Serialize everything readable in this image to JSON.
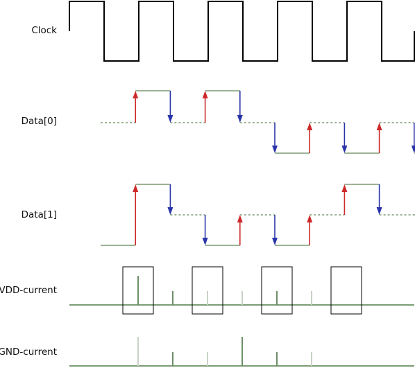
{
  "labels": {
    "clock": "Clock",
    "data0": "Data[0]",
    "data1": "Data[1]",
    "vdd": "VDD-current",
    "gnd": "GND-current"
  },
  "colors": {
    "clock": "#000000",
    "signal": "#7a9a72",
    "rise_arrow": "#cc2a2a",
    "fall_arrow": "#2a35a8",
    "current_baseline": "#4f7a46",
    "spike_strong": "#6d8f66",
    "spike_faint": "#c9d2c6",
    "box": "#000000"
  },
  "signals": {
    "clock_periods": 5,
    "data0": [
      "x",
      1,
      "x",
      1,
      "x",
      0,
      "x",
      0,
      "x",
      0
    ],
    "data1": [
      0,
      1,
      "x",
      0,
      "x",
      0,
      "x",
      1,
      "x",
      "x"
    ]
  },
  "currents": {
    "vdd_spikes": [
      "strong",
      "weak",
      "faint",
      "faint",
      "weak",
      "faint"
    ],
    "gnd_spikes": [
      "faint",
      "weak",
      "faint",
      "strong",
      "weak",
      "faint"
    ],
    "boxed_clock_cycles": [
      0,
      1,
      2,
      3
    ]
  }
}
